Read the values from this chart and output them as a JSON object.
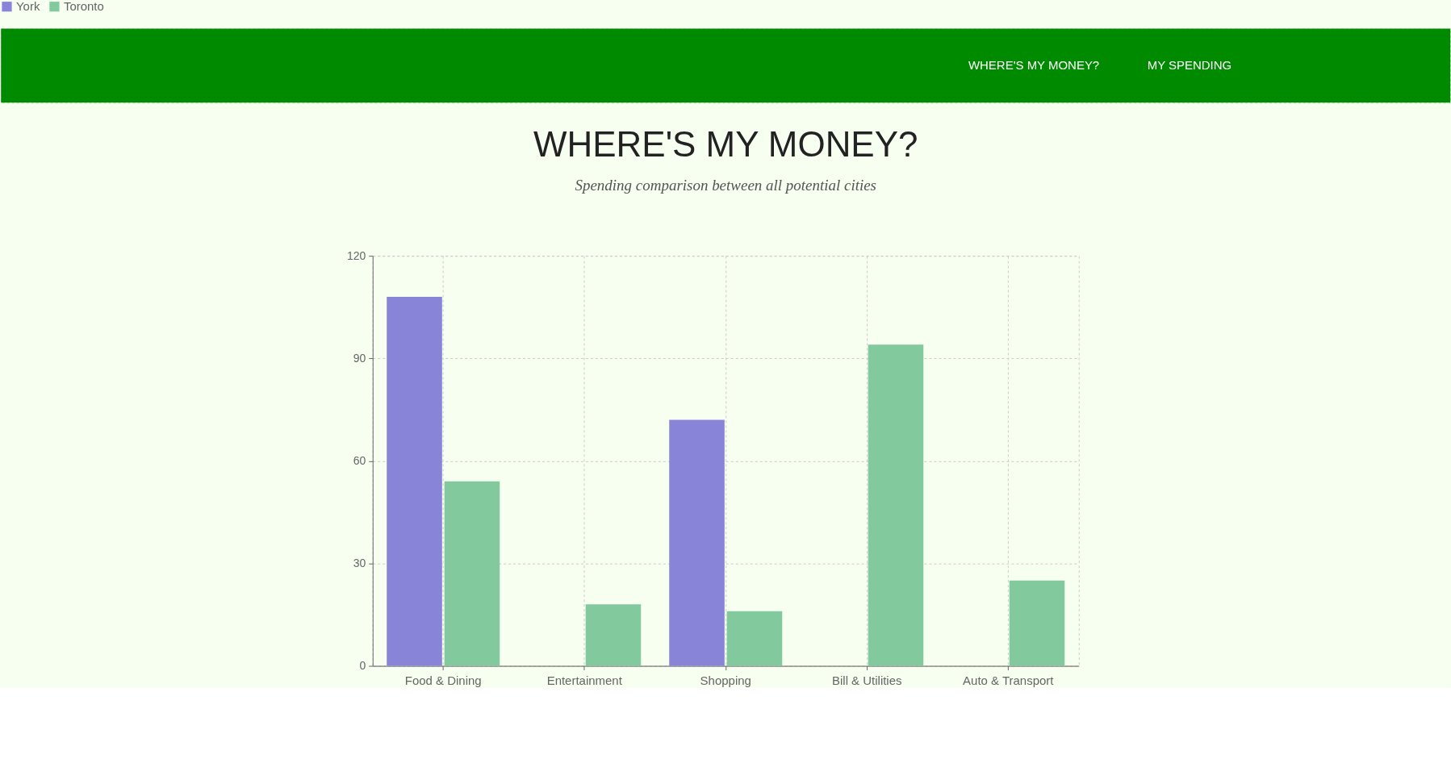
{
  "chart_data": {
    "type": "bar",
    "title": "WHERE'S MY MONEY?",
    "subtitle": "Spending comparison between all potential cities",
    "annotations": [
      "WHERE'S MY MONEY?",
      "MY SPENDING"
    ],
    "categories": [
      "Food & Dining",
      "Entertainment",
      "Shopping",
      "Bill & Utilities",
      "Auto & Transport"
    ],
    "series": [
      {
        "name": "York",
        "color": "#8884d8",
        "values": [
          108,
          0,
          72,
          0,
          0
        ]
      },
      {
        "name": "Toronto",
        "color": "#82ca9d",
        "values": [
          54,
          18,
          16,
          94,
          25
        ]
      }
    ],
    "ylim": [
      0,
      120
    ],
    "yticks": [
      0,
      30,
      60,
      90,
      120
    ],
    "grid": true,
    "legend": "top"
  }
}
